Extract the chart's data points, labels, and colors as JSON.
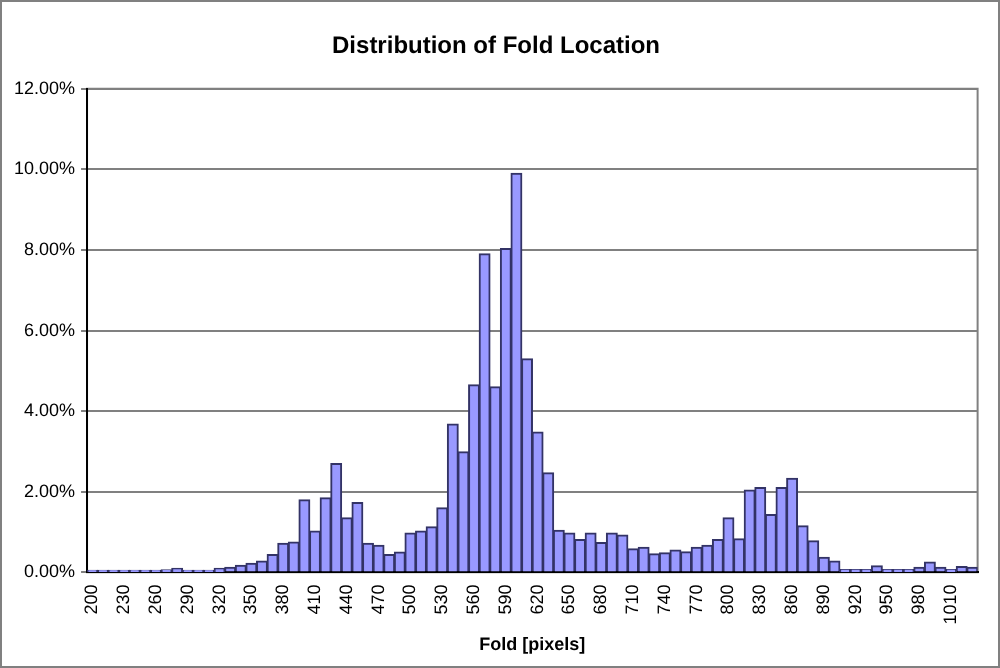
{
  "chart_data": {
    "type": "bar",
    "title": "Distribution of Fold Location",
    "xlabel": "Fold [pixels]",
    "categories": [
      "200",
      null,
      null,
      "230",
      null,
      null,
      "260",
      null,
      null,
      "290",
      null,
      null,
      "320",
      null,
      null,
      "350",
      null,
      null,
      "380",
      null,
      null,
      "410",
      null,
      null,
      "440",
      null,
      null,
      "470",
      null,
      null,
      "500",
      null,
      null,
      "530",
      null,
      null,
      "560",
      null,
      null,
      "590",
      null,
      null,
      "620",
      null,
      null,
      "650",
      null,
      null,
      "680",
      null,
      null,
      "710",
      null,
      null,
      "740",
      null,
      null,
      "770",
      null,
      null,
      "800",
      null,
      null,
      "830",
      null,
      null,
      "860",
      null,
      null,
      "890",
      null,
      null,
      "920",
      null,
      null,
      "950",
      null,
      null,
      "980",
      null,
      null,
      "1010",
      null,
      null
    ],
    "values": [
      0.05,
      0.05,
      0.05,
      0.05,
      0.05,
      0.05,
      0.05,
      0.06,
      0.1,
      0.05,
      0.05,
      0.05,
      0.1,
      0.12,
      0.17,
      0.22,
      0.28,
      0.44,
      0.72,
      0.75,
      1.8,
      1.02,
      1.85,
      2.7,
      1.35,
      1.73,
      0.72,
      0.67,
      0.44,
      0.5,
      0.97,
      1.02,
      1.13,
      1.6,
      3.68,
      2.99,
      4.65,
      7.9,
      4.6,
      8.03,
      9.9,
      5.3,
      3.48,
      2.47,
      1.04,
      0.97,
      0.81,
      0.97,
      0.74,
      0.97,
      0.92,
      0.58,
      0.62,
      0.46,
      0.48,
      0.55,
      0.51,
      0.62,
      0.67,
      0.81,
      1.35,
      0.83,
      2.04,
      2.1,
      1.43,
      2.1,
      2.33,
      1.15,
      0.78,
      0.37,
      0.28,
      0.07,
      0.07,
      0.07,
      0.16,
      0.07,
      0.07,
      0.07,
      0.12,
      0.25,
      0.12,
      0.07,
      0.14,
      0.12
    ],
    "color": "#9999ff",
    "ylim": [
      0,
      12
    ],
    "yticks": [
      {
        "value": 0,
        "label": "0.00%"
      },
      {
        "value": 2,
        "label": "2.00%"
      },
      {
        "value": 4,
        "label": "4.00%"
      },
      {
        "value": 6,
        "label": "6.00%"
      },
      {
        "value": 8,
        "label": "8.00%"
      },
      {
        "value": 10,
        "label": "10.00%"
      },
      {
        "value": 12,
        "label": "12.00%"
      }
    ],
    "grid": "y",
    "legend": false
  }
}
